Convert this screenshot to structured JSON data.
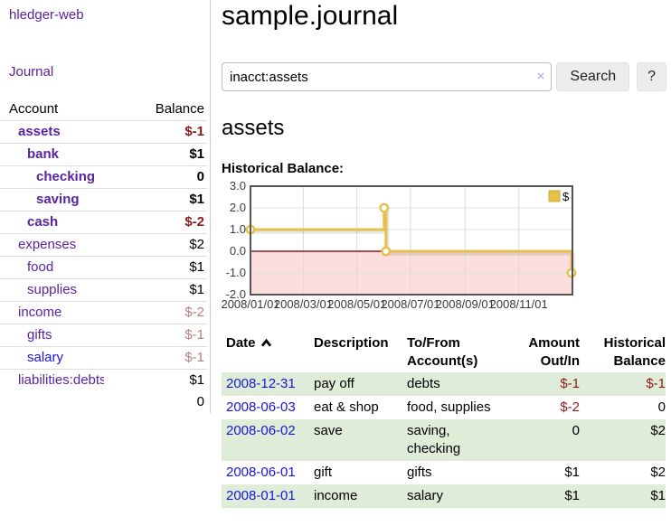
{
  "colors": {
    "accent_purple": "#5a23a4",
    "link_blue": "#1717d6",
    "negative_strong": "#8e1a1a",
    "negative_muted": "#b97f7f",
    "row_stripe_green": "#dfecd8",
    "chart_gold": "#e6c14a",
    "chart_negative_fill": "#fcdede",
    "chart_zero_line": "#8b1a1a"
  },
  "sidebar": {
    "brand": "hledger-web",
    "journal_link": "Journal",
    "accounts": {
      "headers": {
        "account": "Account",
        "balance": "Balance"
      },
      "rows": [
        {
          "account": "assets",
          "indent": 0,
          "bold": true,
          "balance": "$-1",
          "balance_negative": "strong"
        },
        {
          "account": "bank",
          "indent": 1,
          "bold": true,
          "balance": "$1"
        },
        {
          "account": "checking",
          "indent": 2,
          "bold": true,
          "balance": "0"
        },
        {
          "account": "saving",
          "indent": 2,
          "bold": true,
          "balance": "$1"
        },
        {
          "account": "cash",
          "indent": 1,
          "bold": true,
          "balance": "$-2",
          "balance_negative": "strong"
        },
        {
          "account": "expenses",
          "indent": 0,
          "balance": "$2"
        },
        {
          "account": "food",
          "indent": 1,
          "balance": "$1"
        },
        {
          "account": "supplies",
          "indent": 1,
          "balance": "$1"
        },
        {
          "account": "income",
          "indent": 0,
          "balance": "$-2",
          "balance_negative": "muted"
        },
        {
          "account": "gifts",
          "indent": 1,
          "balance": "$-1",
          "balance_negative": "muted"
        },
        {
          "account": "salary",
          "indent": 1,
          "link_color": "blue",
          "balance": "$-1",
          "balance_negative": "muted"
        },
        {
          "account": "liabilities:debts",
          "indent": 0,
          "balance": "$1"
        }
      ],
      "total": "0"
    }
  },
  "header": {
    "title": "sample.journal"
  },
  "search": {
    "value": "inacct:assets",
    "clear_icon": "×",
    "search_button": "Search",
    "help_button": "?"
  },
  "account_view": {
    "heading": "assets",
    "chart_title": "Historical Balance:"
  },
  "chart_data": {
    "type": "line",
    "step": true,
    "title": "Historical Balance:",
    "series": [
      {
        "name": "$",
        "color": "#e6c14a",
        "points": [
          [
            "2008-01-01",
            1.0
          ],
          [
            "2008-06-01",
            2.0
          ],
          [
            "2008-06-03",
            0.0
          ],
          [
            "2008-12-31",
            -1.0
          ]
        ]
      }
    ],
    "x_range": [
      "2008-01-01",
      "2009-01-01"
    ],
    "y_range": [
      -2.0,
      3.0
    ],
    "y_ticks": [
      3.0,
      2.0,
      1.0,
      0.0,
      -1.0,
      -2.0
    ],
    "x_ticks": [
      {
        "date": "2008-01-01",
        "label": "2008/01/01"
      },
      {
        "date": "2008-03-01",
        "label": "2008/03/01"
      },
      {
        "date": "2008-05-01",
        "label": "2008/05/01"
      },
      {
        "date": "2008-07-01",
        "label": "2008/07/01"
      },
      {
        "date": "2008-09-01",
        "label": "2008/09/01"
      },
      {
        "date": "2008-11-01",
        "label": "2008/11/01"
      }
    ],
    "legend": {
      "label": "$",
      "position": "top-right"
    },
    "grid": true,
    "negative_region_color": "#fcdede",
    "zero_line_color": "#8b1a1a",
    "xlabel": "",
    "ylabel": ""
  },
  "register": {
    "headers": {
      "date": "Date",
      "description": "Description",
      "account": "To/From Account(s)",
      "amount": "Amount Out/In",
      "balance": "Historical Balance"
    },
    "rows": [
      {
        "date": "2008-12-31",
        "description": "pay off",
        "accounts": "debts",
        "amount": "$-1",
        "amount_negative": true,
        "balance": "$-1",
        "balance_negative": true
      },
      {
        "date": "2008-06-03",
        "description": "eat & shop",
        "accounts": "food, supplies",
        "amount": "$-2",
        "amount_negative": true,
        "balance": "0",
        "balance_negative": false
      },
      {
        "date": "2008-06-02",
        "description": "save",
        "accounts": "saving, checking",
        "amount": "0",
        "amount_negative": false,
        "balance": "$2",
        "balance_negative": false
      },
      {
        "date": "2008-06-01",
        "description": "gift",
        "accounts": "gifts",
        "amount": "$1",
        "amount_negative": false,
        "balance": "$2",
        "balance_negative": false
      },
      {
        "date": "2008-01-01",
        "description": "income",
        "accounts": "salary",
        "amount": "$1",
        "amount_negative": false,
        "balance": "$1",
        "balance_negative": false
      }
    ]
  }
}
